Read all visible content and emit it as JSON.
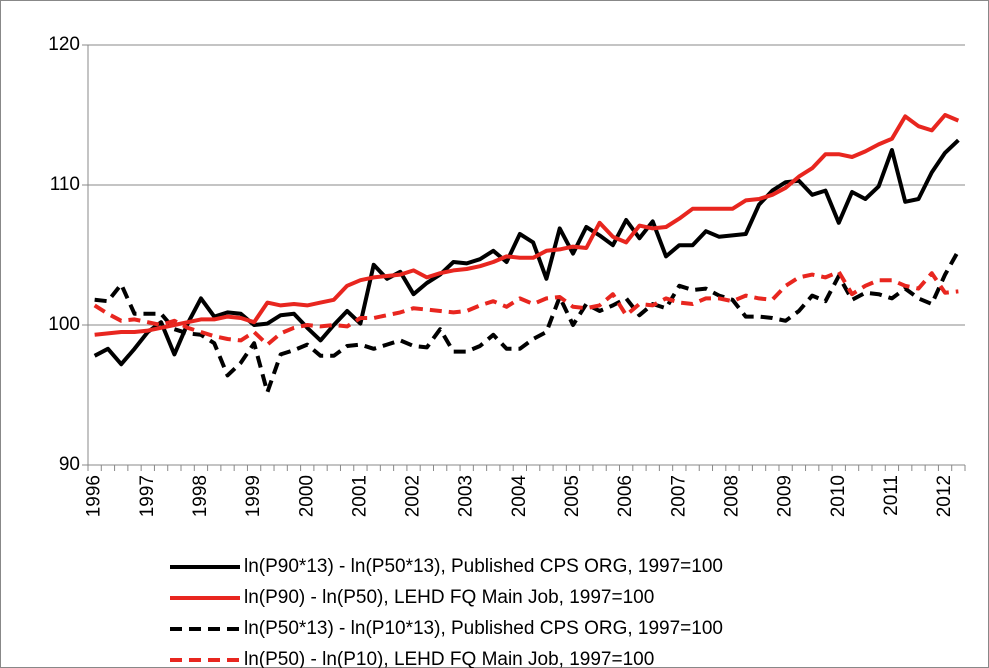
{
  "chart_data": {
    "type": "line",
    "categories": [
      "1996",
      null,
      null,
      null,
      "1997",
      null,
      null,
      null,
      "1998",
      null,
      null,
      null,
      "1999",
      null,
      null,
      null,
      "2000",
      null,
      null,
      null,
      "2001",
      null,
      null,
      null,
      "2002",
      null,
      null,
      null,
      "2003",
      null,
      null,
      null,
      "2004",
      null,
      null,
      null,
      "2005",
      null,
      null,
      null,
      "2006",
      null,
      null,
      null,
      "2007",
      null,
      null,
      null,
      "2008",
      null,
      null,
      null,
      "2009",
      null,
      null,
      null,
      "2010",
      null,
      null,
      null,
      "2011",
      null,
      null,
      null,
      "2012",
      null
    ],
    "ylim": [
      90,
      120
    ],
    "yticks": [
      90,
      100,
      110,
      120
    ],
    "grid": true,
    "series": [
      {
        "name": "ln(P90*13) - ln(P50*13), Published CPS ORG, 1997=100",
        "color": "#000000",
        "dashed": false,
        "values": [
          97.8,
          98.3,
          97.2,
          98.3,
          99.5,
          100.2,
          97.9,
          100.1,
          101.9,
          100.6,
          100.9,
          100.8,
          100.0,
          100.1,
          100.7,
          100.8,
          99.8,
          98.9,
          100.0,
          101.0,
          100.1,
          104.3,
          103.3,
          103.8,
          102.2,
          103.0,
          103.6,
          104.5,
          104.4,
          104.7,
          105.3,
          104.5,
          106.5,
          105.9,
          103.3,
          106.9,
          105.1,
          107.0,
          106.4,
          105.7,
          107.5,
          106.2,
          107.4,
          104.9,
          105.7,
          105.7,
          106.7,
          106.3,
          106.4,
          106.5,
          108.6,
          109.6,
          110.2,
          110.3,
          109.3,
          109.6,
          107.3,
          109.5,
          109.0,
          109.9,
          112.5,
          108.8,
          109.0,
          110.9,
          112.3,
          113.2
        ]
      },
      {
        "name": "ln(P90) - ln(P50), LEHD FQ Main Job, 1997=100",
        "color": "#e8261f",
        "dashed": false,
        "values": [
          99.3,
          99.4,
          99.5,
          99.5,
          99.6,
          99.8,
          100.0,
          100.2,
          100.4,
          100.4,
          100.6,
          100.5,
          100.2,
          101.6,
          101.4,
          101.5,
          101.4,
          101.6,
          101.8,
          102.8,
          103.2,
          103.4,
          103.5,
          103.6,
          103.9,
          103.4,
          103.7,
          103.9,
          104.0,
          104.2,
          104.5,
          104.9,
          104.8,
          104.8,
          105.3,
          105.4,
          105.6,
          105.5,
          107.3,
          106.3,
          105.9,
          107.1,
          106.9,
          107.0,
          107.6,
          108.3,
          108.3,
          108.3,
          108.3,
          108.9,
          109.0,
          109.3,
          109.8,
          110.6,
          111.2,
          112.2,
          112.2,
          112.0,
          112.4,
          112.9,
          113.3,
          114.9,
          114.2,
          113.9,
          115.0,
          114.6
        ]
      },
      {
        "name": "ln(P50*13) - ln(P10*13), Published CPS ORG, 1997=100",
        "color": "#000000",
        "dashed": true,
        "values": [
          101.8,
          101.7,
          102.9,
          100.8,
          100.8,
          100.8,
          99.7,
          99.4,
          99.3,
          98.7,
          96.4,
          97.3,
          98.7,
          95.2,
          97.9,
          98.2,
          98.6,
          97.8,
          97.8,
          98.5,
          98.6,
          98.3,
          98.6,
          98.9,
          98.5,
          98.4,
          99.7,
          98.1,
          98.1,
          98.5,
          99.3,
          98.3,
          98.3,
          99.0,
          99.5,
          102.0,
          100.0,
          101.5,
          101.0,
          101.4,
          101.9,
          100.7,
          101.5,
          101.2,
          102.8,
          102.5,
          102.6,
          102.1,
          101.8,
          100.6,
          100.6,
          100.5,
          100.3,
          101.0,
          102.1,
          101.7,
          103.5,
          101.8,
          102.3,
          102.2,
          101.9,
          102.6,
          101.9,
          101.5,
          103.6,
          105.3
        ]
      },
      {
        "name": "ln(P50) - ln(P10), LEHD FQ Main Job, 1997=100",
        "color": "#e8261f",
        "dashed": true,
        "values": [
          101.4,
          100.8,
          100.3,
          100.4,
          100.2,
          100.0,
          100.3,
          99.8,
          99.5,
          99.2,
          99.0,
          98.9,
          99.5,
          98.6,
          99.4,
          99.8,
          100.0,
          99.9,
          100.0,
          99.9,
          100.5,
          100.5,
          100.7,
          100.9,
          101.2,
          101.1,
          101.0,
          100.9,
          101.0,
          101.4,
          101.7,
          101.3,
          101.9,
          101.5,
          101.9,
          102.0,
          101.3,
          101.2,
          101.4,
          102.2,
          100.7,
          101.5,
          101.4,
          101.9,
          101.6,
          101.5,
          101.9,
          101.9,
          101.7,
          102.1,
          101.9,
          101.8,
          102.8,
          103.4,
          103.6,
          103.4,
          103.8,
          102.2,
          102.8,
          103.2,
          103.2,
          102.8,
          102.6,
          103.7,
          102.3,
          102.4
        ]
      }
    ]
  }
}
